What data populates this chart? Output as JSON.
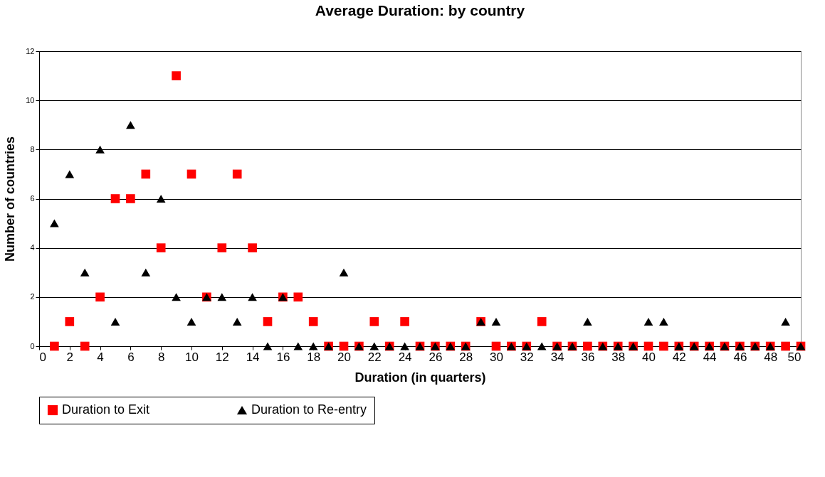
{
  "chart_data": {
    "type": "scatter",
    "title": "Average Duration:  by country",
    "xlabel": "Duration (in quarters)",
    "ylabel": "Number of countries",
    "x": [
      1,
      2,
      3,
      4,
      5,
      6,
      7,
      8,
      9,
      10,
      11,
      12,
      13,
      14,
      15,
      16,
      17,
      18,
      19,
      20,
      21,
      22,
      23,
      24,
      25,
      26,
      27,
      28,
      29,
      30,
      31,
      32,
      33,
      34,
      35,
      36,
      37,
      38,
      39,
      40,
      41,
      42,
      43,
      44,
      45,
      46,
      47,
      48,
      49,
      50
    ],
    "series": [
      {
        "name": "Duration to Exit",
        "color": "#ff0000",
        "marker": "square",
        "values": [
          0,
          1,
          0,
          2,
          6,
          6,
          7,
          4,
          11,
          7,
          2,
          4,
          7,
          4,
          1,
          2,
          2,
          1,
          0,
          0,
          0,
          1,
          0,
          1,
          0,
          0,
          0,
          0,
          1,
          0,
          0,
          0,
          1,
          0,
          0,
          0,
          0,
          0,
          0,
          0,
          0,
          0,
          0,
          0,
          0,
          0,
          0,
          0,
          0,
          0
        ]
      },
      {
        "name": "Duration to Re-entry",
        "color": "#000000",
        "marker": "triangle",
        "values": [
          5,
          7,
          3,
          8,
          1,
          9,
          3,
          6,
          2,
          1,
          2,
          2,
          1,
          2,
          0,
          2,
          0,
          0,
          0,
          3,
          0,
          0,
          0,
          0,
          0,
          0,
          0,
          0,
          1,
          1,
          0,
          0,
          0,
          0,
          0,
          1,
          0,
          0,
          0,
          1,
          1,
          0,
          0,
          0,
          0,
          0,
          0,
          0,
          1,
          0
        ]
      }
    ],
    "xlim": [
      0,
      50
    ],
    "xticks": [
      0,
      2,
      4,
      6,
      8,
      10,
      12,
      14,
      16,
      18,
      20,
      22,
      24,
      26,
      28,
      30,
      32,
      34,
      36,
      38,
      40,
      42,
      44,
      46,
      48,
      50
    ],
    "ylim": [
      0,
      12
    ],
    "yticks": [
      0,
      2,
      4,
      6,
      8,
      10,
      12
    ],
    "grid": "y",
    "legend": "bottom"
  }
}
